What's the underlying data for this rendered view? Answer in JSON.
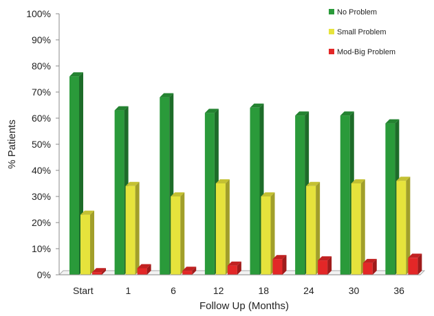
{
  "chart_data": {
    "type": "bar",
    "title": "",
    "xlabel": "Follow Up (Months)",
    "ylabel": "% Patients",
    "ylim": [
      0,
      100
    ],
    "y_ticks": [
      "0%",
      "10%",
      "20%",
      "30%",
      "40%",
      "50%",
      "60%",
      "70%",
      "80%",
      "90%",
      "100%"
    ],
    "grid": false,
    "legend_position": "top-right",
    "categories": [
      "Start",
      "1",
      "6",
      "12",
      "18",
      "24",
      "30",
      "36"
    ],
    "series": [
      {
        "name": "No Problem",
        "color": "#2a9a3a",
        "values": [
          76,
          63,
          68,
          62,
          64,
          61,
          61,
          58
        ]
      },
      {
        "name": "Small Problem",
        "color": "#e6e33c",
        "values": [
          23,
          34,
          30,
          35,
          30,
          34,
          35,
          36
        ]
      },
      {
        "name": "Mod-Big Problem",
        "color": "#e32727",
        "values": [
          1,
          2.5,
          1.5,
          3.5,
          6,
          5.5,
          4.5,
          6.5
        ]
      }
    ]
  }
}
